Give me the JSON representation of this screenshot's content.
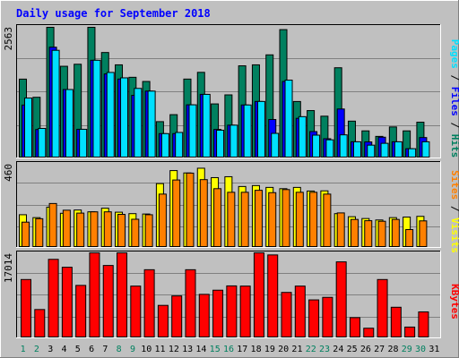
{
  "chart_data": [
    {
      "type": "bar",
      "panel": "top",
      "title": "Daily usage for September 2018",
      "y_max_label": "2563",
      "ylim": [
        0,
        2563
      ],
      "categories": [
        "1",
        "2",
        "3",
        "4",
        "5",
        "6",
        "7",
        "8",
        "9",
        "10",
        "11",
        "12",
        "13",
        "14",
        "15",
        "16",
        "17",
        "18",
        "19",
        "20",
        "21",
        "22",
        "23",
        "24",
        "25",
        "26",
        "27",
        "28",
        "29",
        "30",
        "31"
      ],
      "legend": [
        "Pages",
        "Files",
        "Hits"
      ],
      "series": [
        {
          "name": "Hits",
          "color": "#00805F",
          "values": [
            1529,
            1173,
            2545,
            1781,
            1821,
            2545,
            2051,
            1809,
            1565,
            1483,
            695,
            832,
            1530,
            1662,
            1043,
            1220,
            1790,
            1809,
            2005,
            2500,
            1090,
            912,
            802,
            1752,
            705,
            514,
            406,
            591,
            514,
            684,
            0
          ]
        },
        {
          "name": "Files",
          "color": "#0000FF",
          "values": [
            1020,
            541,
            2155,
            1325,
            545,
            1899,
            1631,
            1530,
            1211,
            1294,
            460,
            460,
            1025,
            1230,
            542,
            626,
            1022,
            1091,
            737,
            1483,
            760,
            500,
            360,
            943,
            300,
            297,
            390,
            300,
            164,
            383,
            0
          ]
        },
        {
          "name": "Pages",
          "color": "#00E0FF",
          "values": [
            1158,
            562,
            2094,
            1325,
            545,
            1899,
            1660,
            1554,
            1347,
            1294,
            460,
            483,
            1025,
            1230,
            527,
            626,
            1022,
            1091,
            465,
            1509,
            793,
            430,
            339,
            436,
            300,
            234,
            270,
            300,
            164,
            300,
            0
          ]
        }
      ]
    },
    {
      "type": "bar",
      "panel": "middle",
      "y_max_label": "460",
      "ylim": [
        0,
        460
      ],
      "legend": [
        "Sites",
        "Visits"
      ],
      "series": [
        {
          "name": "Visits",
          "color": "#FFFF00",
          "values": [
            176,
            160,
            218,
            184,
            202,
            192,
            212,
            190,
            182,
            180,
            348,
            420,
            407,
            433,
            381,
            386,
            332,
            337,
            327,
            320,
            327,
            307,
            308,
            182,
            165,
            155,
            147,
            160,
            163,
            167,
            0
          ]
        },
        {
          "name": "Sites",
          "color": "#FF8000",
          "values": [
            135,
            154,
            238,
            201,
            185,
            192,
            192,
            178,
            151,
            176,
            290,
            368,
            406,
            370,
            320,
            300,
            300,
            311,
            298,
            315,
            300,
            300,
            290,
            186,
            150,
            143,
            140,
            150,
            94,
            142,
            0
          ]
        }
      ]
    },
    {
      "type": "bar",
      "panel": "bottom",
      "y_max_label": "17014",
      "ylim": [
        0,
        17014
      ],
      "legend": [
        "KBytes"
      ],
      "series": [
        {
          "name": "KBytes",
          "color": "#FF0000",
          "values": [
            11620,
            5550,
            15700,
            14100,
            10430,
            17014,
            14460,
            17014,
            10290,
            13600,
            6390,
            8300,
            13600,
            8620,
            9460,
            10330,
            10290,
            17014,
            16590,
            9010,
            10290,
            7500,
            8010,
            15190,
            3910,
            1770,
            11620,
            6010,
            2000,
            5070,
            0
          ]
        }
      ]
    }
  ]
}
